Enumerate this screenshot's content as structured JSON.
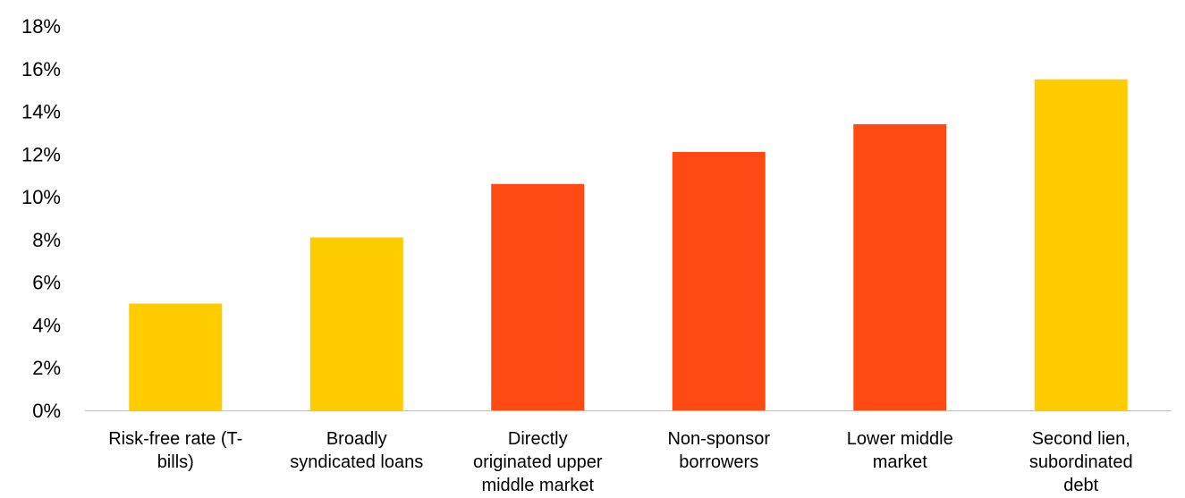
{
  "chart_data": {
    "type": "bar",
    "title": "",
    "xlabel": "",
    "ylabel": "",
    "ylim": [
      0,
      18
    ],
    "y_ticks": [
      "0%",
      "2%",
      "4%",
      "6%",
      "8%",
      "10%",
      "12%",
      "14%",
      "16%",
      "18%"
    ],
    "y_tick_values": [
      0,
      2,
      4,
      6,
      8,
      10,
      12,
      14,
      16,
      18
    ],
    "grid": false,
    "legend": "none",
    "categories": [
      [
        "Risk-free rate (T-",
        "bills)"
      ],
      [
        "Broadly",
        "syndicated loans"
      ],
      [
        "Directly",
        "originated upper",
        "middle market"
      ],
      [
        "Non-sponsor",
        "borrowers"
      ],
      [
        "Lower middle",
        "market"
      ],
      [
        "Second lien,",
        "subordinated",
        "debt"
      ]
    ],
    "values": [
      5.0,
      8.1,
      10.6,
      12.1,
      13.4,
      15.5
    ],
    "bar_colors": [
      "#ffcc00",
      "#ffcc00",
      "#ff4a14",
      "#ff4a14",
      "#ff4a14",
      "#ffcc00"
    ]
  }
}
